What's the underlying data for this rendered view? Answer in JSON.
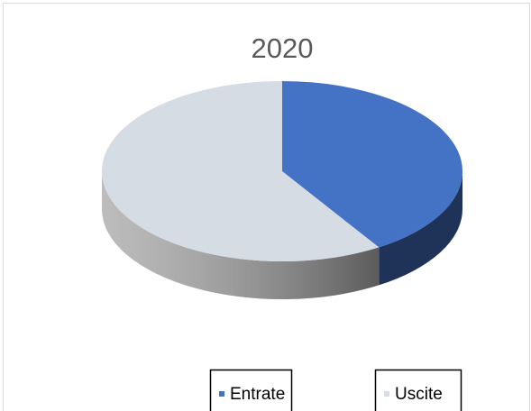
{
  "chart_data": {
    "type": "pie",
    "title": "2020",
    "categories": [
      "Entrate",
      "Uscite"
    ],
    "values": [
      41,
      59
    ],
    "colors": [
      "#4472c4",
      "#d6dce4"
    ]
  }
}
